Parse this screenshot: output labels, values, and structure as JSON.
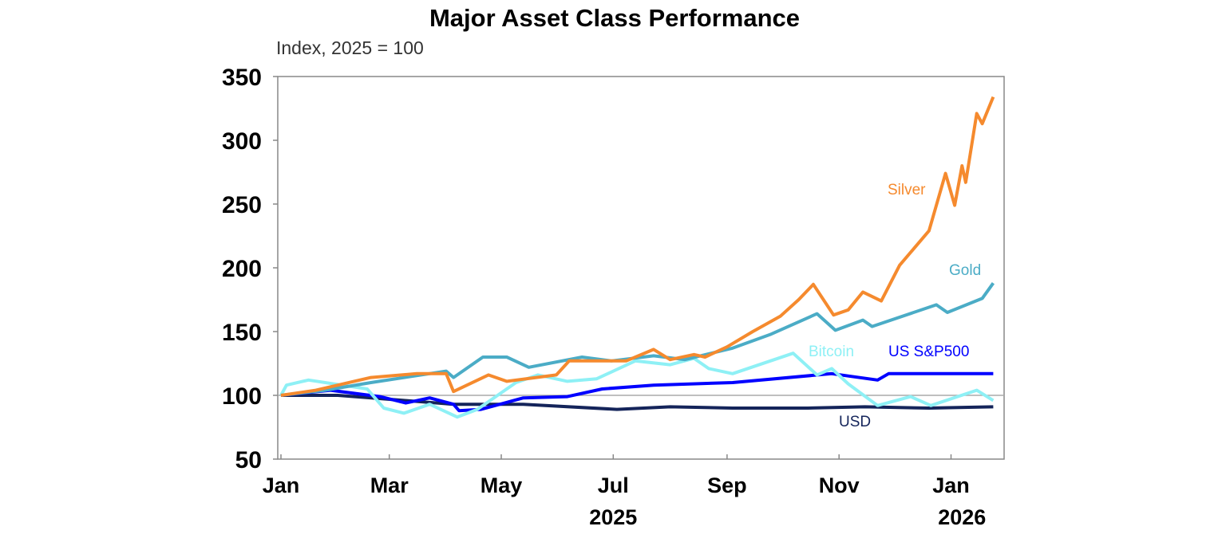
{
  "chart_data": {
    "type": "line",
    "title": "Major Asset Class Performance",
    "subtitle": "Index, 2025 = 100",
    "xlabel": "",
    "ylabel": "",
    "ylim": [
      50,
      350
    ],
    "yticks": [
      50,
      100,
      150,
      200,
      250,
      300,
      350
    ],
    "xlim": [
      "2025-01-01",
      "2026-01-31"
    ],
    "xticks": [
      {
        "date": "2025-01-01",
        "label": "Jan"
      },
      {
        "date": "2025-03-01",
        "label": "Mar"
      },
      {
        "date": "2025-05-01",
        "label": "May"
      },
      {
        "date": "2025-07-01",
        "label": "Jul"
      },
      {
        "date": "2025-09-01",
        "label": "Sep"
      },
      {
        "date": "2025-11-01",
        "label": "Nov"
      },
      {
        "date": "2026-01-01",
        "label": "Jan"
      }
    ],
    "year_labels": [
      {
        "date": "2025-07-01",
        "label": "2025"
      },
      {
        "date": "2026-01-07",
        "label": "2026"
      }
    ],
    "reference_line": 100,
    "grid": false,
    "legend": "inline labels",
    "series": [
      {
        "name": "Silver",
        "color": "#F58A2E",
        "points": [
          [
            "2025-01-01",
            100
          ],
          [
            "2025-01-20",
            104
          ],
          [
            "2025-02-19",
            114
          ],
          [
            "2025-03-16",
            117
          ],
          [
            "2025-04-01",
            117
          ],
          [
            "2025-04-05",
            103
          ],
          [
            "2025-04-24",
            116
          ],
          [
            "2025-05-04",
            111
          ],
          [
            "2025-05-31",
            116
          ],
          [
            "2025-06-07",
            127
          ],
          [
            "2025-07-08",
            127
          ],
          [
            "2025-07-23",
            136
          ],
          [
            "2025-08-01",
            128
          ],
          [
            "2025-08-14",
            132
          ],
          [
            "2025-08-20",
            130
          ],
          [
            "2025-09-01",
            138
          ],
          [
            "2025-09-15",
            150
          ],
          [
            "2025-09-30",
            162
          ],
          [
            "2025-10-10",
            175
          ],
          [
            "2025-10-18",
            187
          ],
          [
            "2025-10-29",
            163
          ],
          [
            "2025-11-06",
            167
          ],
          [
            "2025-11-14",
            181
          ],
          [
            "2025-11-24",
            174
          ],
          [
            "2025-12-04",
            202
          ],
          [
            "2025-12-20",
            229
          ],
          [
            "2025-12-29",
            274
          ],
          [
            "2026-01-03",
            249
          ],
          [
            "2026-01-07",
            280
          ],
          [
            "2026-01-09",
            267
          ],
          [
            "2026-01-15",
            321
          ],
          [
            "2026-01-18",
            313
          ],
          [
            "2026-01-24",
            334
          ]
        ]
      },
      {
        "name": "Gold",
        "color": "#4BACC6",
        "points": [
          [
            "2025-01-01",
            100
          ],
          [
            "2025-01-25",
            104
          ],
          [
            "2025-02-19",
            110
          ],
          [
            "2025-04-01",
            119
          ],
          [
            "2025-04-05",
            114
          ],
          [
            "2025-04-21",
            130
          ],
          [
            "2025-05-04",
            130
          ],
          [
            "2025-05-16",
            122
          ],
          [
            "2025-06-14",
            130
          ],
          [
            "2025-06-30",
            127
          ],
          [
            "2025-07-23",
            131
          ],
          [
            "2025-08-09",
            128
          ],
          [
            "2025-09-04",
            137
          ],
          [
            "2025-09-25",
            148
          ],
          [
            "2025-10-20",
            164
          ],
          [
            "2025-10-30",
            151
          ],
          [
            "2025-11-14",
            159
          ],
          [
            "2025-11-19",
            154
          ],
          [
            "2025-12-24",
            171
          ],
          [
            "2025-12-30",
            165
          ],
          [
            "2026-01-18",
            176
          ],
          [
            "2026-01-24",
            188
          ]
        ]
      },
      {
        "name": "Bitcoin",
        "color": "#8EF0F5",
        "points": [
          [
            "2025-01-01",
            100
          ],
          [
            "2025-01-04",
            108
          ],
          [
            "2025-01-16",
            112
          ],
          [
            "2025-02-17",
            105
          ],
          [
            "2025-02-26",
            90
          ],
          [
            "2025-03-09",
            86
          ],
          [
            "2025-03-23",
            93
          ],
          [
            "2025-04-07",
            83
          ],
          [
            "2025-04-18",
            89
          ],
          [
            "2025-04-28",
            99
          ],
          [
            "2025-05-09",
            110
          ],
          [
            "2025-05-21",
            116
          ],
          [
            "2025-06-06",
            111
          ],
          [
            "2025-06-22",
            113
          ],
          [
            "2025-07-13",
            127
          ],
          [
            "2025-08-01",
            124
          ],
          [
            "2025-08-14",
            129
          ],
          [
            "2025-08-22",
            121
          ],
          [
            "2025-09-04",
            117
          ],
          [
            "2025-10-07",
            133
          ],
          [
            "2025-10-20",
            116
          ],
          [
            "2025-10-28",
            121
          ],
          [
            "2025-11-06",
            109
          ],
          [
            "2025-11-22",
            92
          ],
          [
            "2025-12-10",
            99
          ],
          [
            "2025-12-21",
            92
          ],
          [
            "2026-01-15",
            104
          ],
          [
            "2026-01-24",
            96
          ]
        ]
      },
      {
        "name": "US S&P500",
        "color": "#0000FF",
        "points": [
          [
            "2025-01-01",
            100
          ],
          [
            "2025-01-28",
            104
          ],
          [
            "2025-02-24",
            99
          ],
          [
            "2025-03-10",
            94
          ],
          [
            "2025-03-23",
            98
          ],
          [
            "2025-04-05",
            93
          ],
          [
            "2025-04-08",
            88
          ],
          [
            "2025-04-20",
            89
          ],
          [
            "2025-05-13",
            98
          ],
          [
            "2025-06-06",
            99
          ],
          [
            "2025-06-25",
            105
          ],
          [
            "2025-07-23",
            108
          ],
          [
            "2025-09-04",
            110
          ],
          [
            "2025-10-28",
            117
          ],
          [
            "2025-11-22",
            112
          ],
          [
            "2025-11-28",
            117
          ],
          [
            "2026-01-24",
            117
          ]
        ]
      },
      {
        "name": "USD",
        "color": "#14245A",
        "points": [
          [
            "2025-01-01",
            100
          ],
          [
            "2025-02-01",
            100
          ],
          [
            "2025-03-09",
            96
          ],
          [
            "2025-04-05",
            93
          ],
          [
            "2025-05-13",
            93
          ],
          [
            "2025-07-03",
            89
          ],
          [
            "2025-08-01",
            91
          ],
          [
            "2025-09-04",
            90
          ],
          [
            "2025-10-15",
            90
          ],
          [
            "2025-11-15",
            91
          ],
          [
            "2025-12-20",
            90
          ],
          [
            "2026-01-24",
            91
          ]
        ]
      }
    ]
  }
}
